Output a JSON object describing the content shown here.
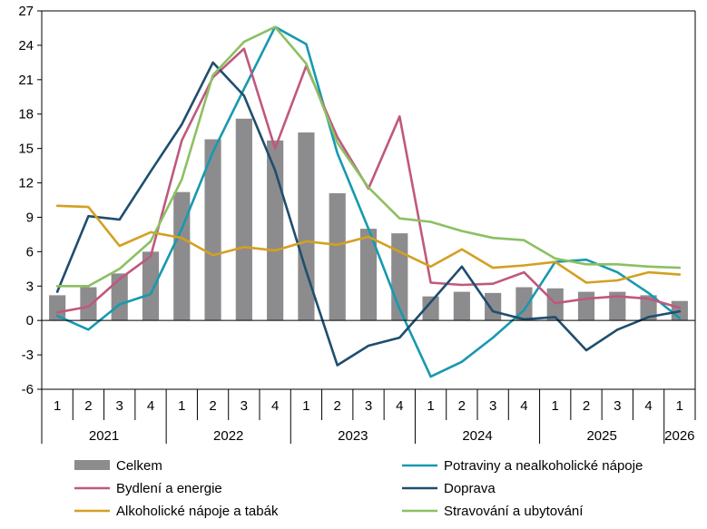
{
  "chart_data": {
    "type": "bar",
    "categories": [
      "1",
      "2",
      "3",
      "4",
      "1",
      "2",
      "3",
      "4",
      "1",
      "2",
      "3",
      "4",
      "1",
      "2",
      "3",
      "4",
      "1",
      "2",
      "3",
      "4",
      "1"
    ],
    "years": [
      {
        "label": "2021",
        "span": 4
      },
      {
        "label": "2022",
        "span": 4
      },
      {
        "label": "2023",
        "span": 4
      },
      {
        "label": "2024",
        "span": 4
      },
      {
        "label": "2025",
        "span": 4
      },
      {
        "label": "2026",
        "span": 1
      }
    ],
    "ylim": [
      -6,
      27
    ],
    "yticks": [
      -6,
      -3,
      0,
      3,
      6,
      9,
      12,
      15,
      18,
      21,
      24,
      27
    ],
    "grid": false,
    "legend_position": "bottom",
    "bar_series": {
      "name": "Celkem",
      "color": "#8c8c8e",
      "values": [
        2.2,
        2.9,
        4.1,
        6.0,
        11.2,
        15.8,
        17.6,
        15.7,
        16.4,
        11.1,
        8.0,
        7.6,
        2.1,
        2.5,
        2.4,
        2.9,
        2.8,
        2.5,
        2.5,
        2.2,
        1.7
      ]
    },
    "line_series": [
      {
        "name": "Potraviny a nealkoholické nápoje",
        "color": "#1799b0",
        "values": [
          0.4,
          -0.8,
          1.4,
          2.3,
          8.0,
          14.7,
          20.2,
          25.6,
          24.1,
          14.6,
          8.0,
          1.0,
          -4.9,
          -3.6,
          -1.5,
          0.9,
          5.1,
          5.3,
          4.2,
          2.4,
          0.2
        ]
      },
      {
        "name": "Bydlení a energie",
        "color": "#c0587e",
        "values": [
          0.7,
          1.2,
          3.6,
          5.6,
          15.7,
          21.2,
          23.7,
          15.0,
          22.2,
          16.0,
          11.5,
          17.8,
          3.3,
          3.1,
          3.2,
          4.2,
          1.5,
          1.9,
          2.1,
          1.9,
          1.1
        ]
      },
      {
        "name": "Doprava",
        "color": "#1f4e6e",
        "values": [
          2.5,
          9.1,
          8.8,
          13.0,
          17.1,
          22.5,
          19.6,
          13.1,
          4.3,
          -3.9,
          -2.2,
          -1.5,
          1.6,
          4.7,
          0.8,
          0.1,
          0.3,
          -2.6,
          -0.8,
          0.3,
          0.8
        ]
      },
      {
        "name": "Alkoholické nápoje a tabák",
        "color": "#d4a021",
        "values": [
          10.0,
          9.9,
          6.5,
          7.7,
          7.2,
          5.7,
          6.4,
          6.1,
          6.9,
          6.6,
          7.3,
          6.0,
          4.7,
          6.2,
          4.6,
          4.8,
          5.1,
          3.3,
          3.5,
          4.2,
          4.0
        ]
      },
      {
        "name": "Stravování a ubytování",
        "color": "#8cc063",
        "values": [
          3.0,
          3.0,
          4.5,
          6.9,
          12.3,
          21.4,
          24.3,
          25.6,
          22.4,
          15.5,
          11.6,
          8.9,
          8.6,
          7.8,
          7.2,
          7.0,
          5.4,
          4.9,
          4.9,
          4.7,
          4.6
        ]
      }
    ],
    "legend": [
      {
        "label": "Celkem",
        "kind": "bar",
        "color": "#8c8c8e"
      },
      {
        "label": "Potraviny a nealkoholické nápoje",
        "kind": "line",
        "color": "#1799b0"
      },
      {
        "label": "Bydlení a energie",
        "kind": "line",
        "color": "#c0587e"
      },
      {
        "label": "Doprava",
        "kind": "line",
        "color": "#1f4e6e"
      },
      {
        "label": "Alkoholické nápoje a tabák",
        "kind": "line",
        "color": "#d4a021"
      },
      {
        "label": "Stravování a ubytování",
        "kind": "line",
        "color": "#8cc063"
      }
    ]
  }
}
